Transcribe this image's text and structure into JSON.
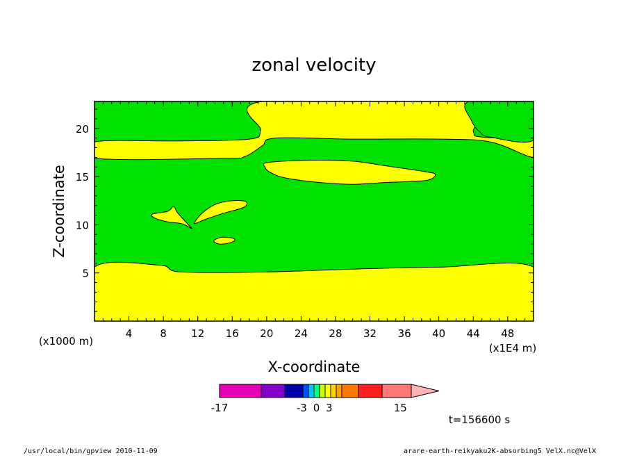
{
  "chart_data": {
    "type": "contour",
    "title": "zonal velocity",
    "xlabel": "X-coordinate",
    "ylabel": "Z-coordinate",
    "x_unit_label": "(x1E4 m)",
    "y_unit_label": "(x1000 m)",
    "xlim": [
      0,
      51
    ],
    "ylim": [
      0,
      22.8
    ],
    "x_ticks": [
      4,
      8,
      12,
      16,
      20,
      24,
      28,
      32,
      36,
      40,
      44,
      48
    ],
    "y_ticks": [
      5,
      10,
      15,
      20
    ],
    "fill_colors": {
      "band_low": "#ffff00",
      "band_mid": "#00e100"
    },
    "contours": [
      {
        "name": "bottom-layer",
        "color": "#ffff00",
        "points": [
          [
            0,
            0
          ],
          [
            51,
            0
          ],
          [
            51,
            5.6
          ],
          [
            40,
            5.6
          ],
          [
            30,
            5.4
          ],
          [
            20,
            5.1
          ],
          [
            10,
            5.1
          ],
          [
            7.6,
            5.8
          ],
          [
            0,
            5.6
          ]
        ]
      },
      {
        "name": "mid-layer",
        "color": "#ffff00",
        "points": [
          [
            0,
            16.9
          ],
          [
            15,
            16.9
          ],
          [
            17.5,
            17.1
          ],
          [
            19.5,
            18.2
          ],
          [
            21,
            19.0
          ],
          [
            30,
            18.9
          ],
          [
            40,
            18.9
          ],
          [
            46,
            18.6
          ],
          [
            51,
            17.0
          ],
          [
            51,
            18.7
          ],
          [
            45,
            19.1
          ],
          [
            44,
            19.7
          ],
          [
            43.5,
            22.8
          ],
          [
            19.5,
            22.8
          ],
          [
            19.3,
            19.8
          ],
          [
            18,
            18.9
          ],
          [
            10,
            18.7
          ],
          [
            0,
            18.6
          ]
        ]
      },
      {
        "name": "top-right-corner",
        "color": "#00e100",
        "points": [
          [
            43.5,
            22.8
          ],
          [
            43.8,
            20.8
          ],
          [
            44.8,
            19.6
          ],
          [
            46,
            19.1
          ],
          [
            51,
            18.8
          ],
          [
            51,
            22.8
          ]
        ]
      },
      {
        "name": "ellipse-16",
        "color": "#ffff00",
        "points": [
          [
            19.8,
            16.4
          ],
          [
            22,
            16.6
          ],
          [
            26,
            16.7
          ],
          [
            30,
            16.6
          ],
          [
            34,
            16.1
          ],
          [
            38.5,
            15.5
          ],
          [
            39.6,
            15.2
          ],
          [
            38.5,
            14.6
          ],
          [
            34,
            14.4
          ],
          [
            30,
            14.2
          ],
          [
            26,
            14.4
          ],
          [
            22,
            14.9
          ],
          [
            20.3,
            15.5
          ],
          [
            19.8,
            16.0
          ]
        ]
      },
      {
        "name": "wing-left",
        "color": "#ffff00",
        "points": [
          [
            6.7,
            11.1
          ],
          [
            8.5,
            11.4
          ],
          [
            9.2,
            11.9
          ],
          [
            9.6,
            11.3
          ],
          [
            10.8,
            10.1
          ],
          [
            11.3,
            9.6
          ],
          [
            10.2,
            10.1
          ],
          [
            8.5,
            10.3
          ],
          [
            7,
            10.7
          ]
        ]
      },
      {
        "name": "wing-right",
        "color": "#ffff00",
        "points": [
          [
            11.6,
            10.2
          ],
          [
            12.5,
            11.2
          ],
          [
            14,
            12.1
          ],
          [
            16,
            12.5
          ],
          [
            17.6,
            12.4
          ],
          [
            17.3,
            11.8
          ],
          [
            15,
            11.2
          ],
          [
            13,
            10.6
          ],
          [
            11.9,
            10.2
          ]
        ]
      },
      {
        "name": "small-blob",
        "color": "#ffff00",
        "points": [
          [
            13.9,
            8.4
          ],
          [
            14.8,
            8.7
          ],
          [
            16.1,
            8.6
          ],
          [
            16.2,
            8.3
          ],
          [
            15,
            8.0
          ],
          [
            14.1,
            8.1
          ]
        ]
      }
    ],
    "colorbar": {
      "segments": [
        {
          "color": "#e600b5"
        },
        {
          "color": "#8200c8"
        },
        {
          "color": "#0000aa"
        },
        {
          "color": "#0050ff"
        },
        {
          "color": "#00c8ff"
        },
        {
          "color": "#00ff82"
        },
        {
          "color": "#c8ff00"
        },
        {
          "color": "#ffff00"
        },
        {
          "color": "#ffd200"
        },
        {
          "color": "#ffa000"
        },
        {
          "color": "#ff7800"
        },
        {
          "color": "#ff1e1e"
        },
        {
          "color": "#ff7878"
        },
        {
          "color": "#ffb4b4"
        }
      ],
      "tick_labels": [
        {
          "label": "-17",
          "pos": 0
        },
        {
          "label": "-3",
          "pos": 0.435
        },
        {
          "label": "0",
          "pos": 0.513
        },
        {
          "label": "3",
          "pos": 0.58
        },
        {
          "label": "15",
          "pos": 0.957
        }
      ]
    },
    "time_label": "t=156600 s"
  },
  "footer": {
    "left": "/usr/local/bin/gpview  2010-11-09",
    "right": "arare-earth-reikyaku2K-absorbing5_VelX.nc@VelX"
  }
}
